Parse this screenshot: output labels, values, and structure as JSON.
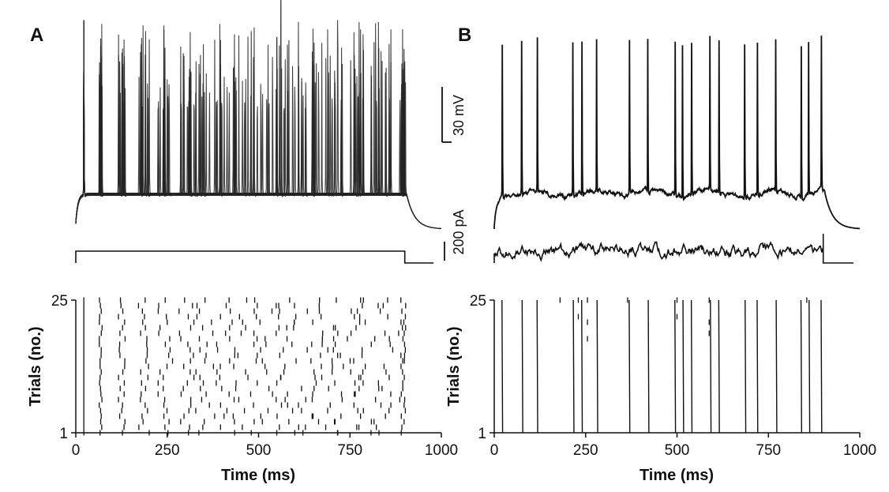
{
  "figure": {
    "panel_a_label": "A",
    "panel_b_label": "B",
    "scale_bar_voltage": "30 mV",
    "scale_bar_current": "200 pA"
  },
  "chart_data": [
    {
      "panel": "A",
      "type": "raster",
      "title": "",
      "xlabel": "Time (ms)",
      "ylabel": "Trials (no.)",
      "xlim": [
        0,
        1000
      ],
      "ylim": [
        1,
        25
      ],
      "xticks": [
        0,
        250,
        500,
        750,
        1000
      ],
      "yticks": [
        1,
        25
      ],
      "stimulus": {
        "type": "step",
        "onset_ms": 0,
        "offset_ms": 900
      },
      "first_spike_times_ms": [
        22,
        68,
        125,
        185,
        245,
        300,
        355,
        410,
        465,
        525,
        580,
        635,
        690,
        745,
        800,
        855,
        895
      ],
      "spike_time_jitter_ms": [
        0,
        4,
        10,
        16,
        20,
        24,
        28,
        32,
        36,
        38,
        40,
        42,
        44,
        46,
        48,
        48,
        8
      ]
    },
    {
      "panel": "B",
      "type": "raster",
      "title": "",
      "xlabel": "Time (ms)",
      "ylabel": "Trials (no.)",
      "xlim": [
        0,
        1000
      ],
      "ylim": [
        1,
        25
      ],
      "xticks": [
        0,
        250,
        500,
        750,
        1000
      ],
      "yticks": [
        1,
        25
      ],
      "stimulus": {
        "type": "fluctuating",
        "onset_ms": 0,
        "offset_ms": 900
      },
      "reliable_spike_times_ms": [
        22,
        75,
        118,
        215,
        240,
        280,
        370,
        420,
        495,
        515,
        540,
        590,
        615,
        685,
        720,
        770,
        840,
        860,
        895
      ],
      "occasional_spike_times_ms": [
        180,
        230,
        255,
        365,
        500,
        588,
        855
      ]
    }
  ]
}
